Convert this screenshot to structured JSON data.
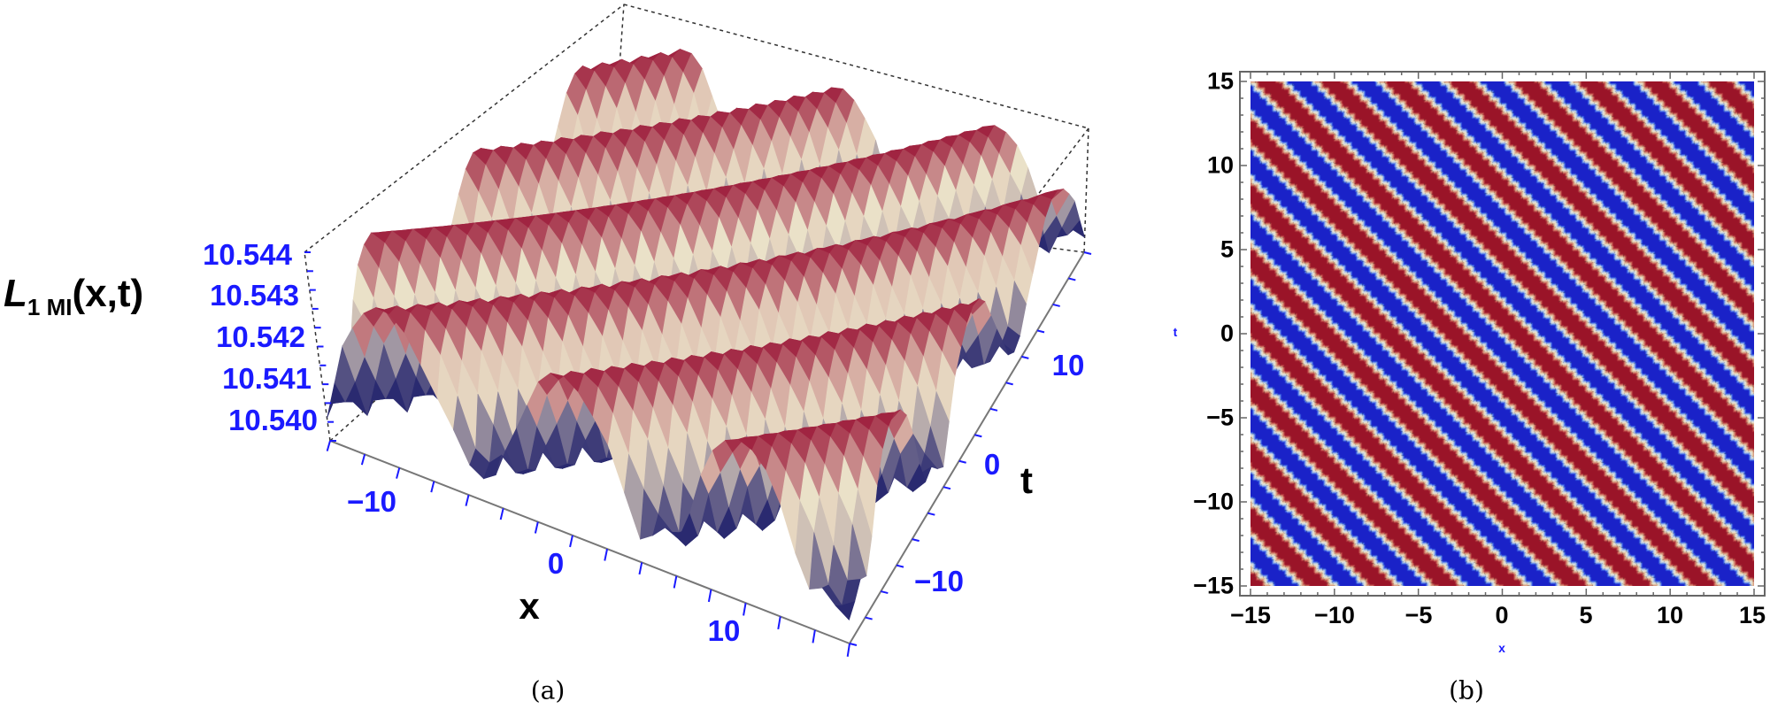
{
  "chart_data": [
    {
      "type": "surface",
      "panel_label": "(a)",
      "zlabel": {
        "main": "L",
        "subscript": "1 MI",
        "args": "(x,t)"
      },
      "xlabel": "x",
      "ylabel": "t",
      "xlim": [
        -15,
        15
      ],
      "ylim": [
        -15,
        15
      ],
      "zlim": [
        10.54,
        10.544
      ],
      "x_ticks": [
        "−10",
        "0",
        "10"
      ],
      "t_ticks": [
        "−10",
        "0",
        "10"
      ],
      "z_ticks": [
        "10.544",
        "10.543",
        "10.542",
        "10.541",
        "10.540"
      ],
      "tick_color": "#1a1aff",
      "colors": {
        "high": "#9c1a3a",
        "mid": "#e6d6c0",
        "low": "#2a2a70"
      },
      "box": "dashed"
    },
    {
      "type": "contour",
      "panel_label": "(b)",
      "xlabel": "x",
      "ylabel": "t",
      "xlim": [
        -15,
        15
      ],
      "ylim": [
        -15,
        15
      ],
      "x_ticks": [
        "−15",
        "−10",
        "−5",
        "0",
        "5",
        "10",
        "15"
      ],
      "y_ticks": [
        "15",
        "10",
        "5",
        "0",
        "−5",
        "−10",
        "−15"
      ],
      "pattern": "diagonal stripes along x + t = const",
      "palette": [
        "#1a22c8",
        "#2e4fe0",
        "#6f94ec",
        "#b4c6e0",
        "#d6dce2",
        "#ebe2cc",
        "#e2c2a2",
        "#d89a80",
        "#cc6a5c",
        "#b0303a",
        "#9a1428"
      ]
    }
  ]
}
